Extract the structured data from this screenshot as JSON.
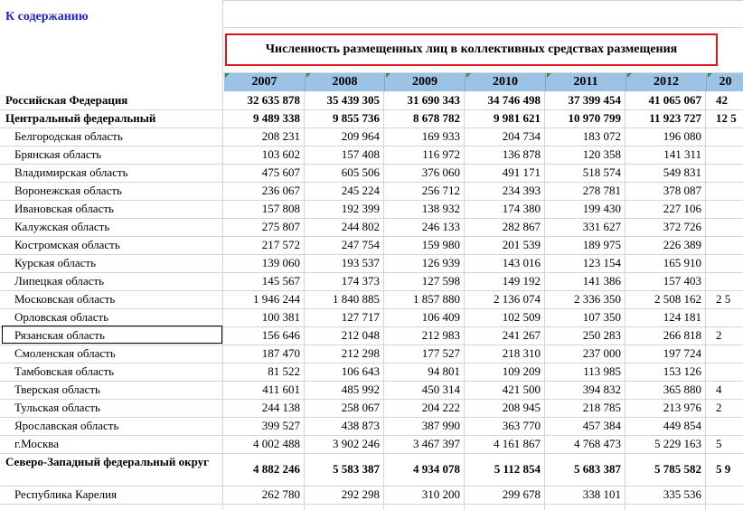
{
  "link_label": "К содержанию",
  "title": "Численность размещенных лиц в коллективных средствах размещения",
  "years": [
    "2007",
    "2008",
    "2009",
    "2010",
    "2011",
    "2012",
    "20"
  ],
  "rows": [
    {
      "label": "Российская Федерация",
      "bold": true,
      "values": [
        "32 635 878",
        "35 439 305",
        "31 690 343",
        "34 746 498",
        "37 399 454",
        "41 065 067",
        "42"
      ]
    },
    {
      "label": "Центральный федеральный",
      "bold": true,
      "values": [
        "9 489 338",
        "9 855 736",
        "8 678 782",
        "9 981 621",
        "10 970 799",
        "11 923 727",
        "12 5"
      ]
    },
    {
      "label": "Белгородская область",
      "bold": false,
      "values": [
        "208 231",
        "209 964",
        "169 933",
        "204 734",
        "183 072",
        "196 080",
        ""
      ]
    },
    {
      "label": "Брянская область",
      "bold": false,
      "values": [
        "103 602",
        "157 408",
        "116 972",
        "136 878",
        "120 358",
        "141 311",
        ""
      ]
    },
    {
      "label": "Владимирская область",
      "bold": false,
      "values": [
        "475 607",
        "605 506",
        "376 060",
        "491 171",
        "518 574",
        "549 831",
        ""
      ]
    },
    {
      "label": "Воронежская область",
      "bold": false,
      "values": [
        "236 067",
        "245 224",
        "256 712",
        "234 393",
        "278 781",
        "378 087",
        ""
      ]
    },
    {
      "label": "Ивановская область",
      "bold": false,
      "values": [
        "157 808",
        "192 399",
        "138 932",
        "174 380",
        "199 430",
        "227 106",
        ""
      ]
    },
    {
      "label": "Калужская область",
      "bold": false,
      "values": [
        "275 807",
        "244 802",
        "246 133",
        "282 867",
        "331 627",
        "372 726",
        ""
      ]
    },
    {
      "label": "Костромская область",
      "bold": false,
      "values": [
        "217 572",
        "247 754",
        "159 980",
        "201 539",
        "189 975",
        "226 389",
        ""
      ]
    },
    {
      "label": "Курская область",
      "bold": false,
      "values": [
        "139 060",
        "193 537",
        "126 939",
        "143 016",
        "123 154",
        "165 910",
        ""
      ]
    },
    {
      "label": "Липецкая область",
      "bold": false,
      "values": [
        "145 567",
        "174 373",
        "127 598",
        "149 192",
        "141 386",
        "157 403",
        ""
      ]
    },
    {
      "label": "Московская область",
      "bold": false,
      "values": [
        "1 946 244",
        "1 840 885",
        "1 857 880",
        "2 136 074",
        "2 336 350",
        "2 508 162",
        "2 5"
      ]
    },
    {
      "label": "Орловская область",
      "bold": false,
      "values": [
        "100 381",
        "127 717",
        "106 409",
        "102 509",
        "107 350",
        "124 181",
        ""
      ]
    },
    {
      "label": "Рязанская область",
      "bold": false,
      "values": [
        "156 646",
        "212 048",
        "212 983",
        "241 267",
        "250 283",
        "266 818",
        "2"
      ]
    },
    {
      "label": "Смоленская область",
      "bold": false,
      "values": [
        "187 470",
        "212 298",
        "177 527",
        "218 310",
        "237 000",
        "197 724",
        ""
      ]
    },
    {
      "label": "Тамбовская область",
      "bold": false,
      "values": [
        "81 522",
        "106 643",
        "94 801",
        "109 209",
        "113 985",
        "153 126",
        ""
      ]
    },
    {
      "label": "Тверская область",
      "bold": false,
      "values": [
        "411 601",
        "485 992",
        "450 314",
        "421 500",
        "394 832",
        "365 880",
        "4"
      ]
    },
    {
      "label": "Тульская область",
      "bold": false,
      "values": [
        "244 138",
        "258 067",
        "204 222",
        "208 945",
        "218 785",
        "213 976",
        "2"
      ]
    },
    {
      "label": "Ярославская область",
      "bold": false,
      "values": [
        "399 527",
        "438 873",
        "387 990",
        "363 770",
        "457 384",
        "449 854",
        ""
      ]
    },
    {
      "label": "г.Москва",
      "bold": false,
      "values": [
        "4 002 488",
        "3 902 246",
        "3 467 397",
        "4 161 867",
        "4 768 473",
        "5 229 163",
        "5"
      ]
    },
    {
      "label": "Северо-Западный федеральный округ",
      "bold": true,
      "values": [
        "4 882 246",
        "5 583 387",
        "4 934 078",
        "5 112 854",
        "5 683 387",
        "5 785 582",
        "5 9"
      ]
    },
    {
      "label": "Республика Карелия",
      "bold": false,
      "values": [
        "262 780",
        "292 298",
        "310 200",
        "299 678",
        "338 101",
        "335 536",
        ""
      ]
    }
  ]
}
